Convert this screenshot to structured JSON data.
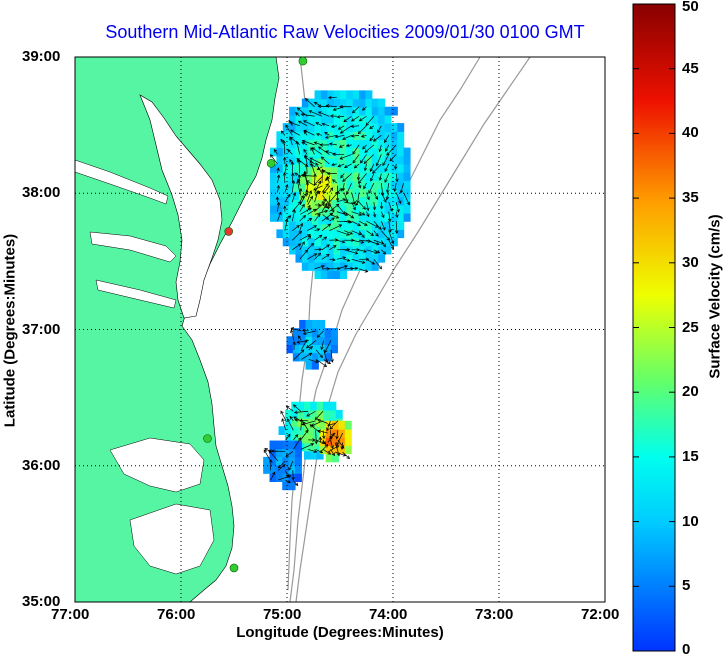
{
  "title": "Southern Mid-Atlantic Raw Velocities 2009/01/30 0100 GMT",
  "x_axis": {
    "label": "Longitude (Degrees:Minutes)",
    "ticks": [
      "77:00",
      "76:00",
      "75:00",
      "74:00",
      "73:00",
      "72:00"
    ]
  },
  "y_axis": {
    "label": "Latitude (Degrees:Minutes)",
    "ticks": [
      "39:00",
      "38:00",
      "37:00",
      "36:00",
      "35:00"
    ]
  },
  "colorbar": {
    "label": "Surface Velocity (cm/s)",
    "ticks": [
      "50",
      "45",
      "40",
      "35",
      "30",
      "25",
      "20",
      "15",
      "10",
      "5",
      "0"
    ],
    "range": [
      0,
      50
    ]
  },
  "map": {
    "lon_range": [
      -77,
      -72
    ],
    "lat_range": [
      35,
      39
    ],
    "land_color": "#55f5a3",
    "ocean_color": "#ffffff",
    "bathymetry_color": "#999999",
    "grid": "dotted",
    "stations": [
      {
        "lon": -74.85,
        "lat": 38.97,
        "color": "#33cc33"
      },
      {
        "lon": -75.15,
        "lat": 38.22,
        "color": "#33cc33"
      },
      {
        "lon": -75.55,
        "lat": 37.72,
        "color": "#ee3333"
      },
      {
        "lon": -75.75,
        "lat": 36.2,
        "color": "#33cc33"
      },
      {
        "lon": -75.5,
        "lat": 35.25,
        "color": "#33cc33"
      }
    ]
  },
  "velocity_regions": [
    {
      "center": [
        -74.52,
        38.05
      ],
      "size": [
        1.28,
        1.35
      ],
      "speed": 18
    },
    {
      "center": [
        -74.72,
        38.0
      ],
      "size": [
        0.45,
        0.45
      ],
      "speed": 28
    },
    {
      "center": [
        -74.78,
        36.87
      ],
      "size": [
        0.45,
        0.32
      ],
      "speed": 10
    },
    {
      "center": [
        -74.78,
        36.25
      ],
      "size": [
        0.6,
        0.4
      ],
      "speed": 22
    },
    {
      "center": [
        -74.58,
        36.18
      ],
      "size": [
        0.35,
        0.3
      ],
      "speed": 38
    },
    {
      "center": [
        -75.05,
        36.0
      ],
      "size": [
        0.35,
        0.35
      ],
      "speed": 8
    }
  ]
}
